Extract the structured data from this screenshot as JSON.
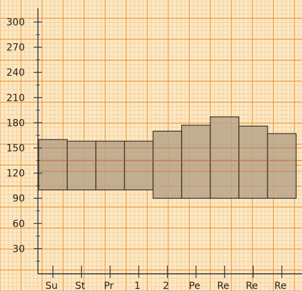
{
  "chart_data": {
    "type": "bar",
    "subtype": "floating-range",
    "categories": [
      "Su",
      "St",
      "Pr",
      "1",
      "2",
      "Pe",
      "Re",
      "Re",
      "Re"
    ],
    "low": [
      100,
      100,
      100,
      100,
      90,
      90,
      90,
      90,
      90
    ],
    "high": [
      160,
      158,
      158,
      158,
      170,
      177,
      187,
      176,
      167
    ],
    "title": "",
    "xlabel": "",
    "ylabel": "",
    "ylim": [
      0,
      300
    ],
    "yticks": [
      30,
      60,
      90,
      120,
      150,
      180,
      210,
      240,
      270,
      300
    ],
    "grid": true,
    "colors": {
      "background": "#fce8c8",
      "grid_minor": "#f3c77a",
      "grid_major": "#e89a3c",
      "bar_fill": "#b8a48a",
      "bar_stroke": "#3a2e22",
      "axis": "#333333",
      "band_line": "#c25a22"
    }
  }
}
